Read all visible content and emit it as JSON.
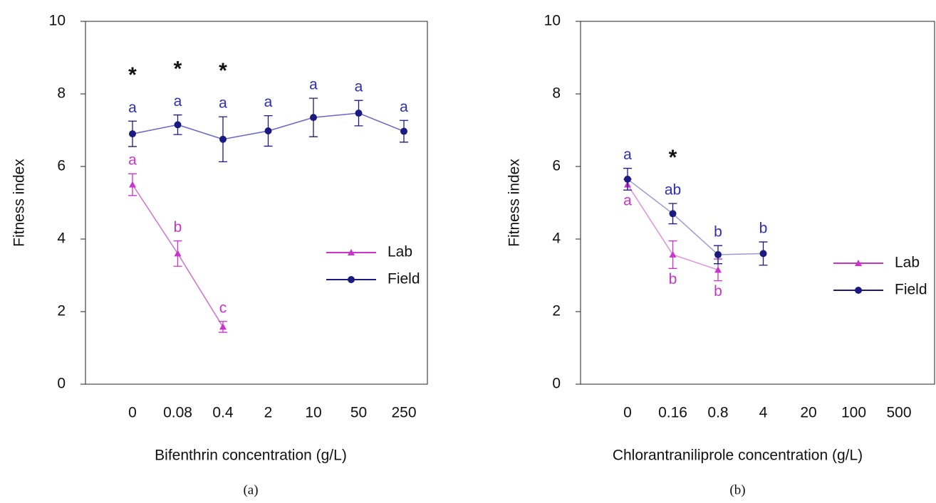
{
  "chart_data": [
    {
      "type": "line",
      "panel_label": "(a)",
      "x_label": "Bifenthrin concentration (g/L)",
      "y_label": "Fitness index",
      "categories": [
        "0",
        "0.08",
        "0.4",
        "2",
        "10",
        "50",
        "250"
      ],
      "ylim": [
        0,
        10
      ],
      "yticks": [
        0,
        2,
        4,
        6,
        8,
        10
      ],
      "legend": "right",
      "significance": [
        "*",
        "*",
        "*",
        null,
        null,
        null,
        null
      ],
      "series": [
        {
          "name": "Lab",
          "color": "#cc33cc",
          "line_color": "#d070d0",
          "marker": "triangle",
          "letter_position": "above",
          "values": [
            5.5,
            3.6,
            1.58,
            null,
            null,
            null,
            null
          ],
          "errors": [
            0.3,
            0.35,
            0.15,
            null,
            null,
            null,
            null
          ],
          "letters": [
            "a",
            "b",
            "c",
            null,
            null,
            null,
            null
          ]
        },
        {
          "name": "Field",
          "color": "#1a1a80",
          "line_color": "#6666cc",
          "letter_color": "#2d2dbb",
          "marker": "circle",
          "letter_position": "above",
          "values": [
            6.9,
            7.15,
            6.75,
            6.98,
            7.35,
            7.47,
            6.97
          ],
          "errors": [
            0.35,
            0.27,
            0.62,
            0.42,
            0.53,
            0.35,
            0.3
          ],
          "letters": [
            "a",
            "a",
            "a",
            "a",
            "a",
            "a",
            "a"
          ]
        }
      ]
    },
    {
      "type": "line",
      "panel_label": "(b)",
      "x_label": "Chlorantraniliprole concentration (g/L)",
      "y_label": "Fitness index",
      "categories": [
        "0",
        "0.16",
        "0.8",
        "4",
        "20",
        "100",
        "500"
      ],
      "ylim": [
        0,
        10
      ],
      "yticks": [
        0,
        2,
        4,
        6,
        8,
        10
      ],
      "legend": "right",
      "significance": [
        null,
        "*",
        null,
        null,
        null,
        null,
        null
      ],
      "series": [
        {
          "name": "Lab",
          "color": "#cc33cc",
          "line_color": "#e08fe0",
          "marker": "triangle",
          "letter_position": "below",
          "values": [
            5.5,
            3.57,
            3.15,
            null,
            null,
            null,
            null
          ],
          "errors": [
            0.15,
            0.38,
            0.3,
            null,
            null,
            null,
            null
          ],
          "letters": [
            "a",
            "b",
            "b",
            null,
            null,
            null,
            null
          ]
        },
        {
          "name": "Field",
          "color": "#1a1a80",
          "line_color": "#9a9ad8",
          "letter_color": "#2d2dbb",
          "marker": "circle",
          "letter_position": "above",
          "values": [
            5.65,
            4.7,
            3.57,
            3.6,
            null,
            null,
            null
          ],
          "errors": [
            0.3,
            0.28,
            0.25,
            0.32,
            null,
            null,
            null
          ],
          "letters": [
            "a",
            "ab",
            "b",
            "b",
            null,
            null,
            null
          ]
        }
      ]
    }
  ]
}
